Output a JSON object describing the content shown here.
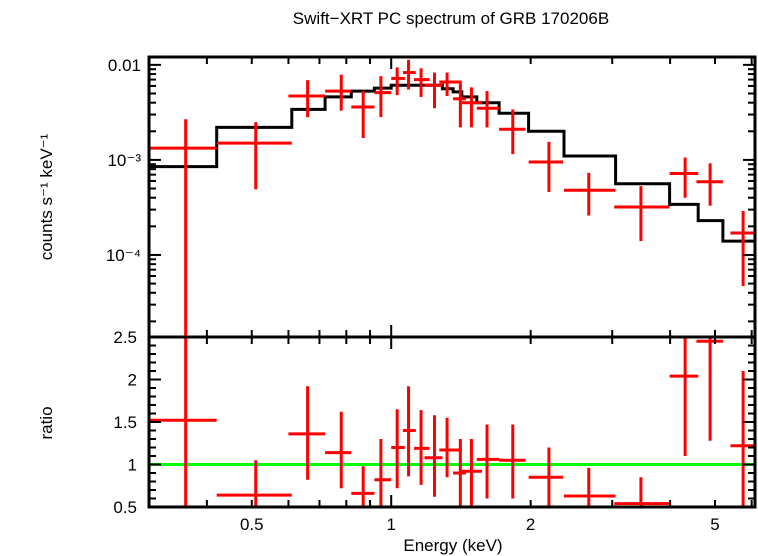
{
  "chart_data": [
    {
      "type": "scatter",
      "panel": "top",
      "title": "Swift−XRT PC spectrum of GRB 170206B",
      "xlabel": "Energy (keV)",
      "ylabel": "counts s⁻¹ keV⁻¹",
      "xscale": "log",
      "yscale": "log",
      "xlim": [
        0.3,
        6.1
      ],
      "ylim": [
        1.37e-05,
        0.0121
      ],
      "yticks": [
        {
          "value": 0.01,
          "label": "0.01"
        },
        {
          "value": 0.001,
          "label": "10⁻³"
        },
        {
          "value": 0.0001,
          "label": "10⁻⁴"
        }
      ],
      "series": [
        {
          "name": "data",
          "color": "#ff0000",
          "points": [
            {
              "x": 0.36,
              "xlo": 0.3,
              "xhi": 0.42,
              "y": 0.00133,
              "ylo": 1e-05,
              "yhi": 0.00268
            },
            {
              "x": 0.51,
              "xlo": 0.42,
              "xhi": 0.61,
              "y": 0.0015,
              "ylo": 0.00049,
              "yhi": 0.0025
            },
            {
              "x": 0.66,
              "xlo": 0.6,
              "xhi": 0.72,
              "y": 0.0047,
              "ylo": 0.00282,
              "yhi": 0.0069
            },
            {
              "x": 0.78,
              "xlo": 0.72,
              "xhi": 0.82,
              "y": 0.0053,
              "ylo": 0.0033,
              "yhi": 0.0079
            },
            {
              "x": 0.87,
              "xlo": 0.82,
              "xhi": 0.92,
              "y": 0.0036,
              "ylo": 0.0017,
              "yhi": 0.0053
            },
            {
              "x": 0.95,
              "xlo": 0.92,
              "xhi": 1.0,
              "y": 0.0051,
              "ylo": 0.00282,
              "yhi": 0.0076
            },
            {
              "x": 1.03,
              "xlo": 1.0,
              "xhi": 1.07,
              "y": 0.0072,
              "ylo": 0.0048,
              "yhi": 0.0094
            },
            {
              "x": 1.09,
              "xlo": 1.06,
              "xhi": 1.13,
              "y": 0.0083,
              "ylo": 0.0055,
              "yhi": 0.0113
            },
            {
              "x": 1.16,
              "xlo": 1.12,
              "xhi": 1.21,
              "y": 0.007,
              "ylo": 0.0046,
              "yhi": 0.0092
            },
            {
              "x": 1.24,
              "xlo": 1.18,
              "xhi": 1.29,
              "y": 0.0061,
              "ylo": 0.0035,
              "yhi": 0.0083
            },
            {
              "x": 1.32,
              "xlo": 1.27,
              "xhi": 1.42,
              "y": 0.0066,
              "ylo": 0.0047,
              "yhi": 0.0083
            },
            {
              "x": 1.41,
              "xlo": 1.36,
              "xhi": 1.45,
              "y": 0.0044,
              "ylo": 0.0022,
              "yhi": 0.0064
            },
            {
              "x": 1.49,
              "xlo": 1.42,
              "xhi": 1.57,
              "y": 0.004,
              "ylo": 0.0022,
              "yhi": 0.0058
            },
            {
              "x": 1.61,
              "xlo": 1.53,
              "xhi": 1.71,
              "y": 0.0035,
              "ylo": 0.0022,
              "yhi": 0.0053
            },
            {
              "x": 1.83,
              "xlo": 1.71,
              "xhi": 1.95,
              "y": 0.0021,
              "ylo": 0.00115,
              "yhi": 0.0034
            },
            {
              "x": 2.19,
              "xlo": 1.98,
              "xhi": 2.35,
              "y": 0.00095,
              "ylo": 0.00046,
              "yhi": 0.00155
            },
            {
              "x": 2.67,
              "xlo": 2.36,
              "xhi": 3.05,
              "y": 0.00048,
              "ylo": 0.00026,
              "yhi": 0.00073
            },
            {
              "x": 3.46,
              "xlo": 3.03,
              "xhi": 3.99,
              "y": 0.00032,
              "ylo": 0.00014,
              "yhi": 0.00053
            },
            {
              "x": 4.31,
              "xlo": 3.99,
              "xhi": 4.6,
              "y": 0.00072,
              "ylo": 0.0004,
              "yhi": 0.00106
            },
            {
              "x": 4.88,
              "xlo": 4.56,
              "xhi": 5.2,
              "y": 0.00059,
              "ylo": 0.00033,
              "yhi": 0.00092
            },
            {
              "x": 5.75,
              "xlo": 5.4,
              "xhi": 6.1,
              "y": 0.00017,
              "ylo": 4.7e-05,
              "yhi": 0.00029
            }
          ]
        },
        {
          "name": "model",
          "color": "#000000",
          "step_edges": [
            0.3,
            0.42,
            0.61,
            0.72,
            0.82,
            0.92,
            1.0,
            1.07,
            1.13,
            1.21,
            1.29,
            1.36,
            1.42,
            1.53,
            1.71,
            1.98,
            2.36,
            3.05,
            3.99,
            4.6,
            5.2,
            6.1
          ],
          "step_values": [
            0.00085,
            0.0022,
            0.0034,
            0.0046,
            0.0053,
            0.0057,
            0.0061,
            0.0061,
            0.0061,
            0.0061,
            0.0056,
            0.0052,
            0.0046,
            0.004,
            0.0031,
            0.002,
            0.0011,
            0.00056,
            0.00034,
            0.00023,
            0.00014
          ]
        }
      ]
    },
    {
      "type": "scatter",
      "panel": "bottom",
      "xlabel": "Energy (keV)",
      "ylabel": "ratio",
      "xscale": "log",
      "yscale": "linear",
      "xlim": [
        0.3,
        6.1
      ],
      "ylim": [
        0.5,
        2.5
      ],
      "xticks": [
        {
          "value": 0.5,
          "label": "0.5"
        },
        {
          "value": 1,
          "label": "1"
        },
        {
          "value": 2,
          "label": "2"
        },
        {
          "value": 5,
          "label": "5"
        }
      ],
      "yticks": [
        {
          "value": 2.5,
          "label": "2.5"
        },
        {
          "value": 2,
          "label": "2"
        },
        {
          "value": 1.5,
          "label": "1.5"
        },
        {
          "value": 1,
          "label": "1"
        },
        {
          "value": 0.5,
          "label": "0.5"
        }
      ],
      "reference_line": {
        "value": 1.0,
        "color": "#00ff00"
      },
      "series": [
        {
          "name": "ratio",
          "color": "#ff0000",
          "points": [
            {
              "x": 0.36,
              "xlo": 0.3,
              "xhi": 0.42,
              "y": 1.52,
              "ylo": 0.5,
              "yhi": 2.5
            },
            {
              "x": 0.51,
              "xlo": 0.42,
              "xhi": 0.61,
              "y": 0.64,
              "ylo": 0.5,
              "yhi": 1.05
            },
            {
              "x": 0.66,
              "xlo": 0.6,
              "xhi": 0.72,
              "y": 1.36,
              "ylo": 0.82,
              "yhi": 1.92
            },
            {
              "x": 0.78,
              "xlo": 0.72,
              "xhi": 0.82,
              "y": 1.14,
              "ylo": 0.72,
              "yhi": 1.62
            },
            {
              "x": 0.87,
              "xlo": 0.82,
              "xhi": 0.92,
              "y": 0.66,
              "ylo": 0.5,
              "yhi": 0.98
            },
            {
              "x": 0.95,
              "xlo": 0.92,
              "xhi": 1.0,
              "y": 0.82,
              "ylo": 0.5,
              "yhi": 1.3
            },
            {
              "x": 1.03,
              "xlo": 1.0,
              "xhi": 1.07,
              "y": 1.2,
              "ylo": 0.72,
              "yhi": 1.65
            },
            {
              "x": 1.09,
              "xlo": 1.06,
              "xhi": 1.13,
              "y": 1.4,
              "ylo": 0.86,
              "yhi": 1.92
            },
            {
              "x": 1.16,
              "xlo": 1.12,
              "xhi": 1.21,
              "y": 1.19,
              "ylo": 0.76,
              "yhi": 1.64
            },
            {
              "x": 1.24,
              "xlo": 1.18,
              "xhi": 1.29,
              "y": 1.08,
              "ylo": 0.62,
              "yhi": 1.58
            },
            {
              "x": 1.32,
              "xlo": 1.27,
              "xhi": 1.42,
              "y": 1.17,
              "ylo": 0.85,
              "yhi": 1.55
            },
            {
              "x": 1.41,
              "xlo": 1.36,
              "xhi": 1.45,
              "y": 0.9,
              "ylo": 0.5,
              "yhi": 1.3
            },
            {
              "x": 1.49,
              "xlo": 1.42,
              "xhi": 1.57,
              "y": 0.92,
              "ylo": 0.5,
              "yhi": 1.3
            },
            {
              "x": 1.61,
              "xlo": 1.53,
              "xhi": 1.71,
              "y": 1.06,
              "ylo": 0.6,
              "yhi": 1.47
            },
            {
              "x": 1.83,
              "xlo": 1.71,
              "xhi": 1.95,
              "y": 1.05,
              "ylo": 0.6,
              "yhi": 1.47
            },
            {
              "x": 2.19,
              "xlo": 1.98,
              "xhi": 2.35,
              "y": 0.85,
              "ylo": 0.5,
              "yhi": 1.2
            },
            {
              "x": 2.67,
              "xlo": 2.36,
              "xhi": 3.05,
              "y": 0.63,
              "ylo": 0.5,
              "yhi": 0.96
            },
            {
              "x": 3.46,
              "xlo": 3.03,
              "xhi": 3.99,
              "y": 0.54,
              "ylo": 0.5,
              "yhi": 0.85
            },
            {
              "x": 4.31,
              "xlo": 3.99,
              "xhi": 4.6,
              "y": 2.04,
              "ylo": 1.1,
              "yhi": 2.5
            },
            {
              "x": 4.88,
              "xlo": 4.56,
              "xhi": 5.2,
              "y": 2.45,
              "ylo": 1.28,
              "yhi": 2.5
            },
            {
              "x": 5.75,
              "xlo": 5.4,
              "xhi": 6.1,
              "y": 1.22,
              "ylo": 0.5,
              "yhi": 2.1
            }
          ]
        }
      ]
    }
  ]
}
